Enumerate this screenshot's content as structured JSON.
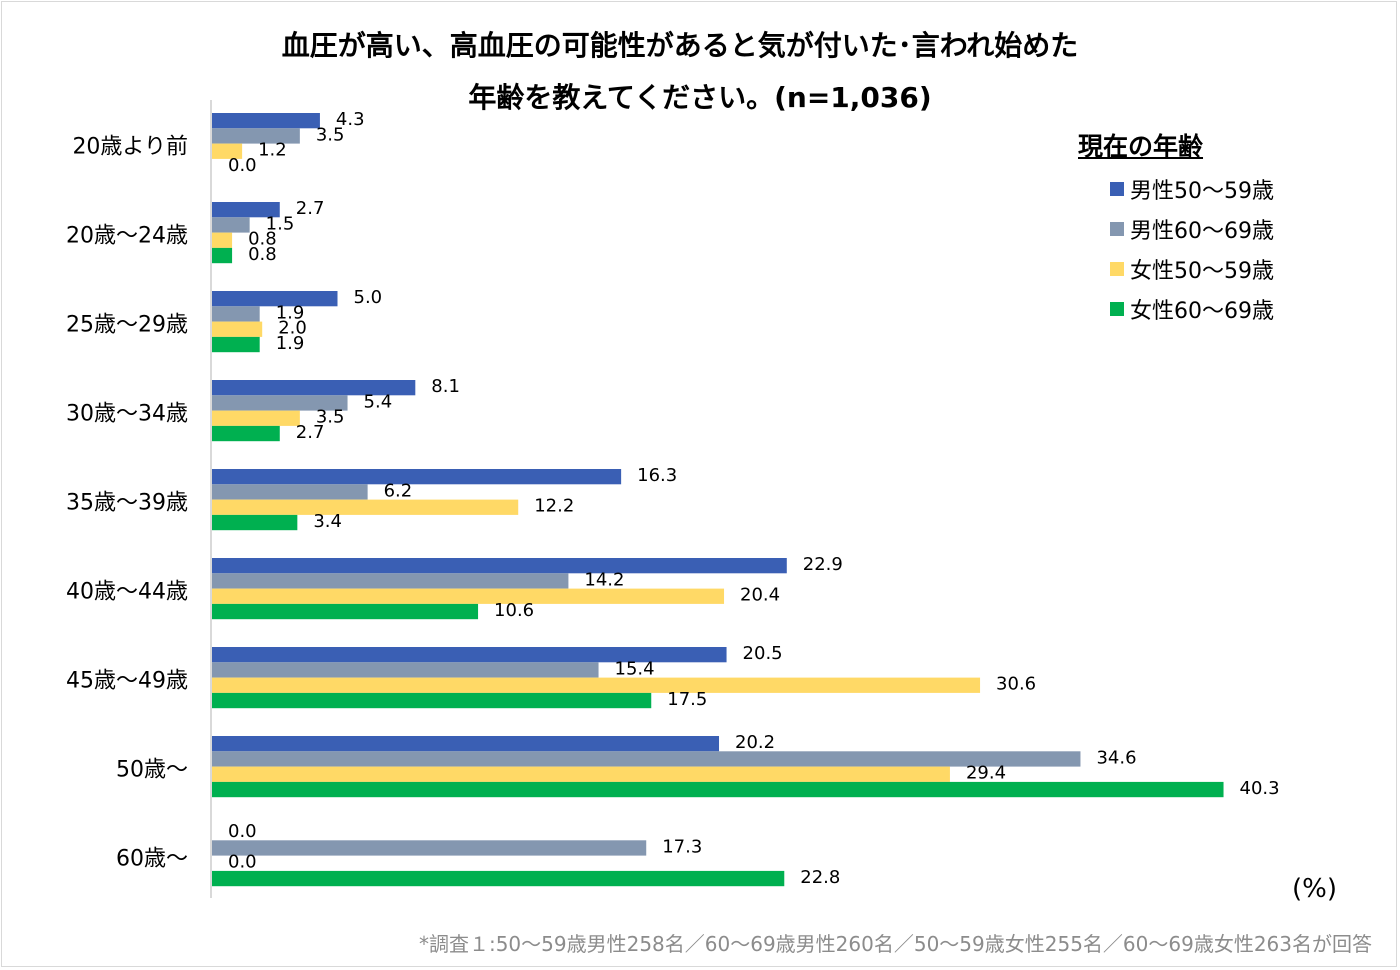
{
  "chart_data": {
    "type": "bar",
    "orientation": "horizontal",
    "title_line1": "血圧が高い、高血圧の可能性があると気が付いた･言われ始めた",
    "title_line2": "年齢を教えてください。(n=1,036)",
    "categories": [
      "20歳より前",
      "20歳～24歳",
      "25歳～29歳",
      "30歳～34歳",
      "35歳～39歳",
      "40歳～44歳",
      "45歳～49歳",
      "50歳～",
      "60歳～"
    ],
    "series": [
      {
        "name": "男性50～59歳",
        "color": "#3a5fb4",
        "values": [
          4.3,
          2.7,
          5.0,
          8.1,
          16.3,
          22.9,
          20.5,
          20.2,
          0.0
        ]
      },
      {
        "name": "男性60～69歳",
        "color": "#8497b0",
        "values": [
          3.5,
          1.5,
          1.9,
          5.4,
          6.2,
          14.2,
          15.4,
          34.6,
          17.3
        ]
      },
      {
        "name": "女性50～59歳",
        "color": "#ffd966",
        "values": [
          1.2,
          0.8,
          2.0,
          3.5,
          12.2,
          20.4,
          30.6,
          29.4,
          0.0
        ]
      },
      {
        "name": "女性60～69歳",
        "color": "#00b050",
        "values": [
          0.0,
          0.8,
          1.9,
          2.7,
          3.4,
          10.6,
          17.5,
          40.3,
          22.8
        ]
      }
    ],
    "legend_title": "現在の年齢",
    "legend_position": "top-right",
    "unit_label": "(%)",
    "xlim": [
      0,
      42
    ],
    "grid": false
  },
  "footnote": "*調査１:50～59歳男性258名／60～69歳男性260名／50～59歳女性255名／60～69歳女性263名が回答"
}
